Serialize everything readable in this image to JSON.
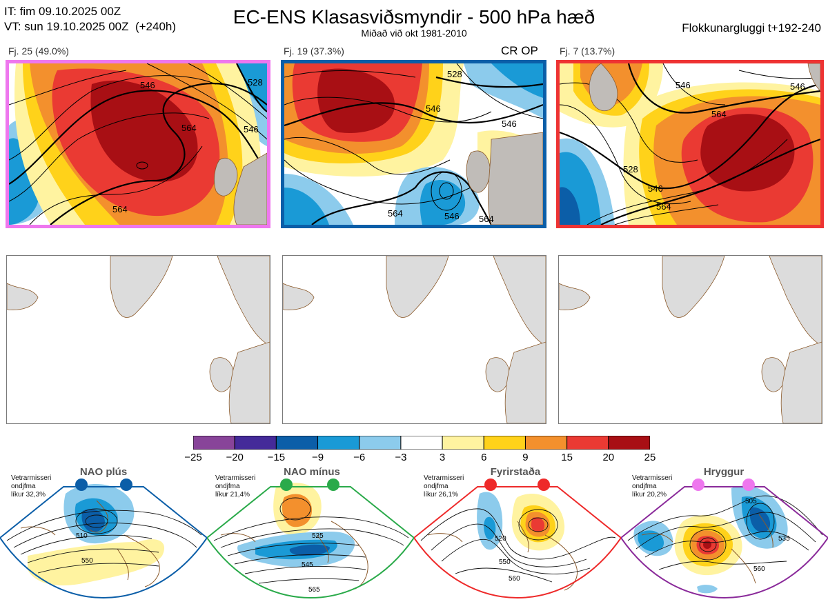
{
  "header": {
    "init_time": "IT: fim 09.10.2025 00Z",
    "valid_time": "VT: sun 19.10.2025 00Z  (+240h)",
    "title": "EC-ENS Klasasviðsmyndir - 500 hPa hæð",
    "subtitle": "Miðað við okt 1981-2010",
    "window": "Flokkunargluggi t+192-240"
  },
  "clusters": [
    {
      "label": "Fj. 25 (49.0%)",
      "border_color": "#ee77ee",
      "flag": "",
      "contour_labels": [
        "546",
        "564",
        "528",
        "546",
        "564"
      ]
    },
    {
      "label": "Fj. 19 (37.3%)",
      "border_color": "#0b5ea8",
      "flag": "CR OP",
      "contour_labels": [
        "528",
        "546",
        "546",
        "564",
        "546",
        "564"
      ]
    },
    {
      "label": "Fj. 7 (13.7%)",
      "border_color": "#ee3333",
      "flag": "",
      "contour_labels": [
        "546",
        "564",
        "528",
        "546",
        "564",
        "546"
      ]
    }
  ],
  "colorbar": {
    "ticks": [
      "−25",
      "−20",
      "−15",
      "−9",
      "−6",
      "−3",
      "3",
      "6",
      "9",
      "15",
      "20",
      "25"
    ],
    "colors": [
      "#884499",
      "#442a99",
      "#0b5ea8",
      "#1a9ad6",
      "#8ccbec",
      "#ffffff",
      "#fff3a0",
      "#ffd21a",
      "#f3902d",
      "#ea3a33",
      "#a80f14"
    ]
  },
  "regimes": [
    {
      "name": "NAO plús",
      "info": "Vetrarmisseri\nondjfma\nlíkur 32,3%",
      "color": "#0b5ea8",
      "contour_labels": [
        "510",
        "550"
      ]
    },
    {
      "name": "NAO mínus",
      "info": "Vetrarmisseri\nondjfma\nlíkur 21,4%",
      "color": "#2aaa4a",
      "contour_labels": [
        "525",
        "545",
        "565"
      ]
    },
    {
      "name": "Fyrirstaða",
      "info": "Vetrarmisseri\nondjfma\nlíkur 26,1%",
      "color": "#ee2a2a",
      "contour_labels": [
        "520",
        "550",
        "560"
      ]
    },
    {
      "name": "Hryggur",
      "info": "Vetrarmisseri\nondjfma\nlíkur 20,2%",
      "color": "#ee77ee",
      "contour_labels": [
        "505",
        "535",
        "560"
      ]
    }
  ],
  "chart_data": {
    "type": "heatmap",
    "title": "EC-ENS Klasasviðsmyndir - 500 hPa hæð",
    "subtitle": "Miðað við okt 1981-2010",
    "color_levels": [
      -25,
      -20,
      -15,
      -9,
      -6,
      -3,
      3,
      6,
      9,
      15,
      20,
      25
    ],
    "clusters": [
      {
        "label": "Fj. 25 (49.0%)",
        "percent": 49.0
      },
      {
        "label": "Fj. 19 (37.3%)",
        "percent": 37.3
      },
      {
        "label": "Fj. 7 (13.7%)",
        "percent": 13.7
      }
    ],
    "regimes": [
      {
        "name": "NAO plús",
        "probability": 32.3
      },
      {
        "name": "NAO mínus",
        "probability": 21.4
      },
      {
        "name": "Fyrirstaða",
        "probability": 26.1
      },
      {
        "name": "Hryggur",
        "probability": 20.2
      }
    ]
  }
}
